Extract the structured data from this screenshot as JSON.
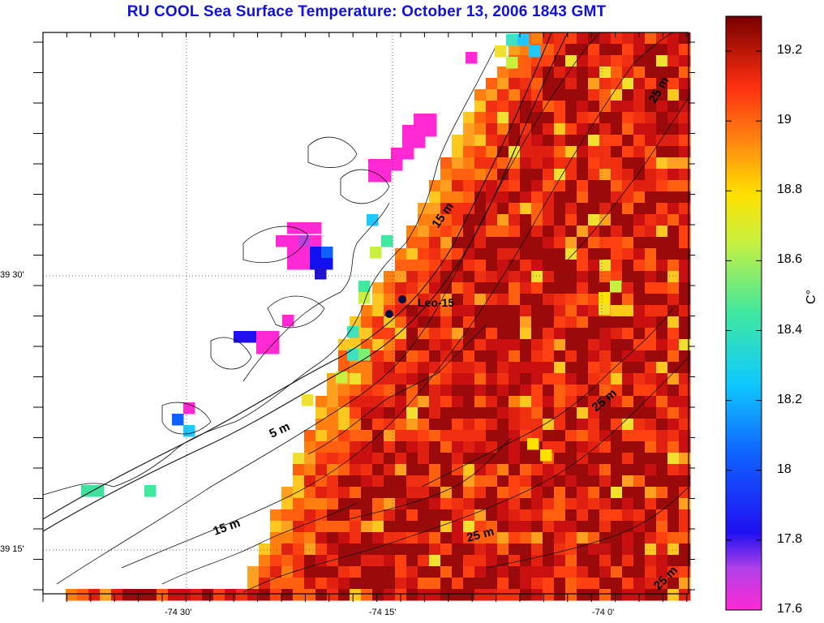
{
  "title": "RU COOL  Sea Surface Temperature:  October 13, 2006 1843 GMT",
  "map": {
    "lat_labels": [
      "39 30'",
      "39 15'"
    ],
    "lon_labels": [
      "-74 30'",
      "-74 15'",
      "-74 0'"
    ],
    "station_label": "Leo-15",
    "contour_labels": [
      "25 m",
      "15 m",
      "25 m",
      "5 m",
      "15 m",
      "25 m",
      "25 m"
    ]
  },
  "colorbar": {
    "unit": "C°",
    "ticks": [
      "19.2",
      "19",
      "18.8",
      "18.6",
      "18.4",
      "18.2",
      "18",
      "17.8",
      "17.6"
    ],
    "min": 17.6,
    "max": 19.3
  }
}
